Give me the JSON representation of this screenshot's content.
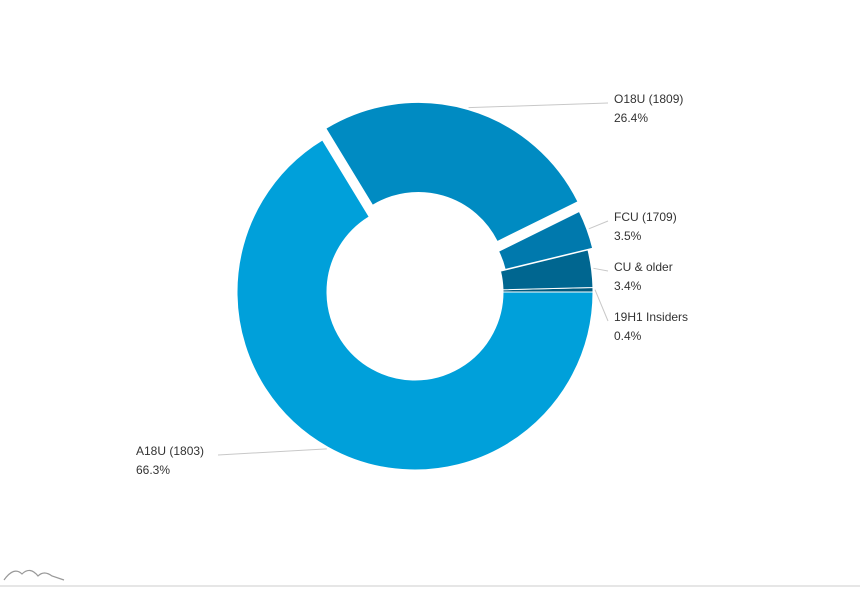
{
  "chart_data": {
    "type": "donut",
    "categories": [
      "19H1 Insiders",
      "CU & older",
      "FCU (1709)",
      "O18U (1809)",
      "A18U (1803)"
    ],
    "values": [
      0.4,
      3.4,
      3.5,
      26.4,
      66.3
    ],
    "value_labels": [
      "0.4%",
      "3.4%",
      "3.5%",
      "26.4%",
      "66.3%"
    ],
    "colors": [
      "#005a7e",
      "#006690",
      "#0079ad",
      "#008bc2",
      "#00a0da"
    ]
  }
}
